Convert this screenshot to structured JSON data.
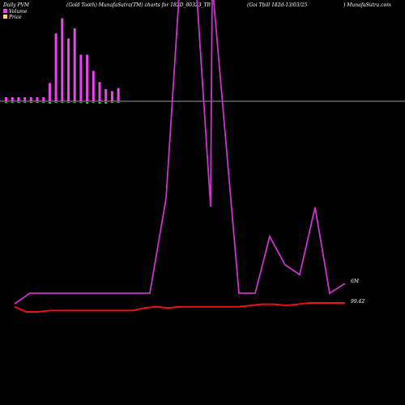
{
  "header": {
    "left": "Daily PVM",
    "center": "(Gold Tooth) MunafaSutra(TM) charts for 182D_80323_TB",
    "center_right": "(Goi Tbill 182d-13/03/25",
    "right": ") MunafaSutra.com"
  },
  "legend": [
    {
      "label": "Volume",
      "color": "#ee44ee"
    },
    {
      "label": "Price",
      "color": "#ffcc88"
    }
  ],
  "colors": {
    "background": "#000000",
    "volume_bar": "#ee44ee",
    "volume_neg": "#33cc33",
    "baseline": "#999999",
    "line_main": "#cc33cc",
    "line_price": "#ee1111"
  },
  "chart_data": {
    "type": "bar+line",
    "volume_bars": [
      {
        "value": 4,
        "neg": 1
      },
      {
        "value": 4,
        "neg": 1
      },
      {
        "value": 4,
        "neg": 1
      },
      {
        "value": 4,
        "neg": 1
      },
      {
        "value": 4,
        "neg": 1
      },
      {
        "value": 4,
        "neg": 1
      },
      {
        "value": 4,
        "neg": 1
      },
      {
        "value": 18,
        "neg": 2
      },
      {
        "value": 67,
        "neg": 1
      },
      {
        "value": 82,
        "neg": 1
      },
      {
        "value": 62,
        "neg": 1
      },
      {
        "value": 72,
        "neg": 1
      },
      {
        "value": 46,
        "neg": 1
      },
      {
        "value": 46,
        "neg": 2
      },
      {
        "value": 30,
        "neg": 1
      },
      {
        "value": 19,
        "neg": 2
      },
      {
        "value": 12,
        "neg": 2
      },
      {
        "value": 10,
        "neg": 1
      },
      {
        "value": 13,
        "neg": 1
      }
    ],
    "volume_line": [
      [
        "0",
        22
      ],
      [
        "1",
        22
      ],
      [
        "2",
        22
      ],
      [
        "3",
        22
      ],
      [
        "4",
        22
      ],
      [
        "5",
        22
      ],
      [
        "6",
        22
      ],
      [
        "7",
        22
      ],
      [
        "8",
        22
      ],
      [
        "9",
        22
      ],
      [
        "10",
        22
      ],
      [
        "11",
        22
      ],
      [
        "12",
        22
      ],
      [
        "13",
        22
      ],
      [
        "14",
        22
      ],
      [
        "15",
        22
      ],
      [
        "16",
        22
      ],
      [
        "17",
        22
      ],
      [
        "18",
        22
      ],
      [
        "19",
        22
      ],
      [
        "20",
        40
      ],
      [
        "21",
        65
      ],
      [
        "22",
        135
      ],
      [
        "23",
        135
      ],
      [
        "24",
        135
      ],
      [
        "25",
        135
      ],
      [
        "26",
        190
      ],
      [
        "27",
        420
      ],
      [
        "28",
        135
      ],
      [
        "29",
        135
      ],
      [
        "30",
        135
      ],
      [
        "31",
        118
      ],
      [
        "32",
        135
      ],
      [
        "33",
        60
      ],
      [
        "34",
        72
      ],
      [
        "35",
        30
      ]
    ],
    "price_line": [
      99.39,
      99.35,
      99.35,
      99.36,
      99.36,
      99.36,
      99.36,
      99.36,
      99.36,
      99.36,
      99.36,
      99.38,
      99.39,
      99.38,
      99.39,
      99.39,
      99.39,
      99.39,
      99.39,
      99.39,
      99.4,
      99.41,
      99.41,
      99.4,
      99.41,
      99.42,
      99.42,
      99.42,
      99.42
    ],
    "labels": {
      "volume_last": "6M",
      "price_last": "99.42"
    }
  }
}
